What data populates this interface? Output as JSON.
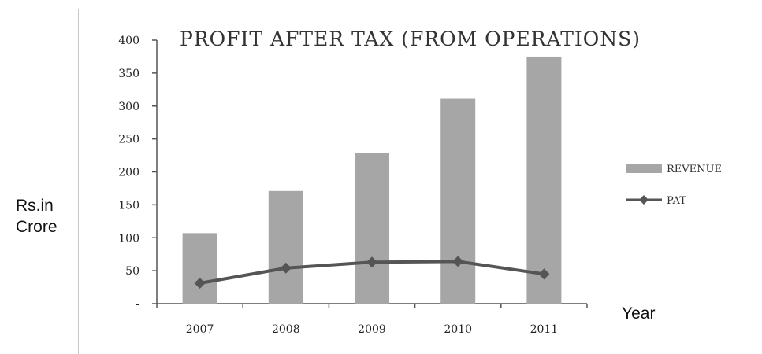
{
  "outer": {
    "y_label_line1": "Rs.in",
    "y_label_line2": "Crore",
    "x_label": "Year"
  },
  "chart_data": {
    "type": "bar",
    "title": "PROFIT AFTER TAX (FROM OPERATIONS)",
    "xlabel": "Year",
    "ylabel": "Rs.in Crore",
    "categories": [
      "2007",
      "2008",
      "2009",
      "2010",
      "2011"
    ],
    "series": [
      {
        "name": "REVENUE",
        "type": "bar",
        "values": [
          107,
          171,
          229,
          311,
          375
        ],
        "color": "#a6a6a6"
      },
      {
        "name": "PAT",
        "type": "line",
        "values": [
          31,
          54,
          63,
          64,
          45
        ],
        "color": "#555555",
        "marker": "diamond"
      }
    ],
    "ylim": [
      0,
      400
    ],
    "yticks": [
      0,
      50,
      100,
      150,
      200,
      250,
      300,
      350,
      400
    ],
    "ytick_labels": [
      "-",
      "50",
      "100",
      "150",
      "200",
      "250",
      "300",
      "350",
      "400"
    ],
    "grid": false,
    "legend_position": "right"
  }
}
